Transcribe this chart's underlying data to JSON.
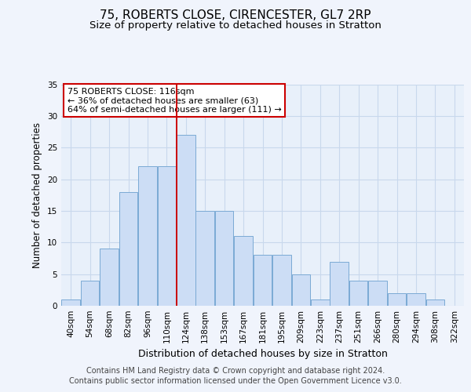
{
  "title1": "75, ROBERTS CLOSE, CIRENCESTER, GL7 2RP",
  "title2": "Size of property relative to detached houses in Stratton",
  "xlabel": "Distribution of detached houses by size in Stratton",
  "ylabel": "Number of detached properties",
  "categories": [
    "40sqm",
    "54sqm",
    "68sqm",
    "82sqm",
    "96sqm",
    "110sqm",
    "124sqm",
    "138sqm",
    "153sqm",
    "167sqm",
    "181sqm",
    "195sqm",
    "209sqm",
    "223sqm",
    "237sqm",
    "251sqm",
    "266sqm",
    "280sqm",
    "294sqm",
    "308sqm",
    "322sqm"
  ],
  "values": [
    1,
    4,
    9,
    18,
    22,
    22,
    27,
    15,
    15,
    11,
    8,
    8,
    5,
    1,
    7,
    4,
    4,
    2,
    2,
    1,
    0
  ],
  "bar_color": "#ccddf5",
  "bar_edge_color": "#7baad4",
  "grid_color": "#c8d8ec",
  "background_color": "#e8f0fa",
  "vline_x": 5.5,
  "vline_color": "#cc0000",
  "annotation_text": "75 ROBERTS CLOSE: 116sqm\n← 36% of detached houses are smaller (63)\n64% of semi-detached houses are larger (111) →",
  "annotation_box_color": "#ffffff",
  "annotation_box_edge_color": "#cc0000",
  "footer1": "Contains HM Land Registry data © Crown copyright and database right 2024.",
  "footer2": "Contains public sector information licensed under the Open Government Licence v3.0.",
  "ylim": [
    0,
    35
  ],
  "yticks": [
    0,
    5,
    10,
    15,
    20,
    25,
    30,
    35
  ],
  "title_fontsize": 11,
  "subtitle_fontsize": 9.5,
  "tick_fontsize": 7.5,
  "ylabel_fontsize": 8.5,
  "xlabel_fontsize": 9,
  "footer_fontsize": 7,
  "ann_fontsize": 8
}
